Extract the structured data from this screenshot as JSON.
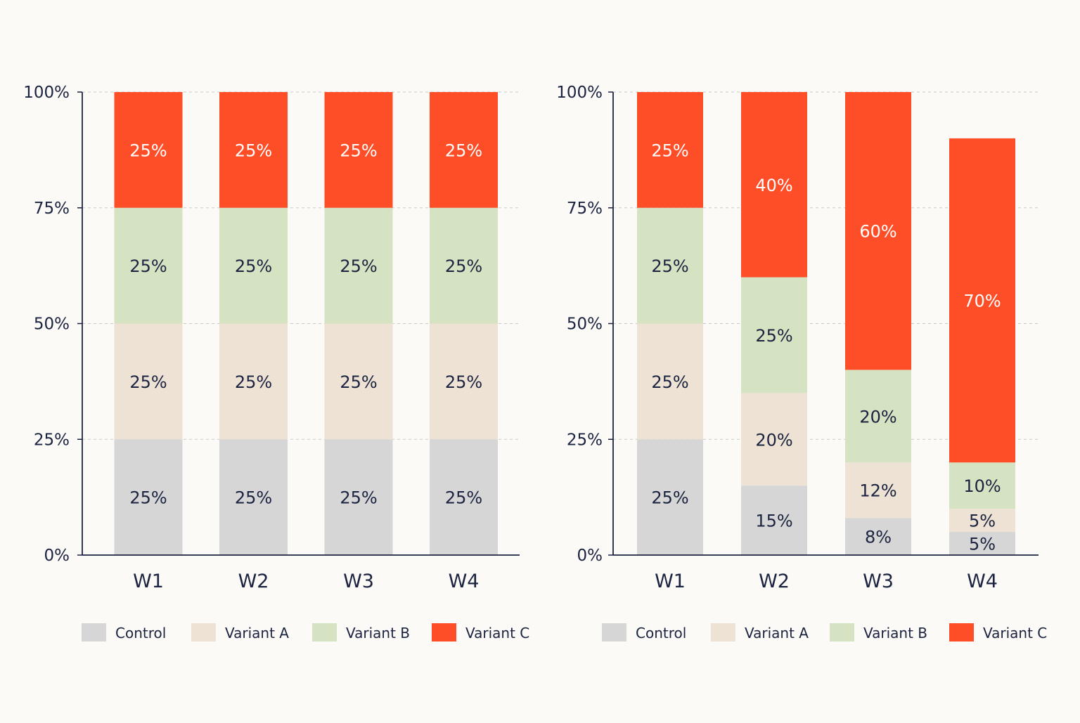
{
  "colors": {
    "Control": "#d6d6d6",
    "Variant A": "#ede2d3",
    "Variant B": "#d6e3c2",
    "Variant C": "#fd4e27",
    "axis": "#1b2340",
    "grid": "#c9c9c9",
    "label_dark": "#1b2340",
    "label_light": "#ffffff"
  },
  "chart_data": [
    {
      "type": "bar",
      "stacked": true,
      "categories": [
        "W1",
        "W2",
        "W3",
        "W4"
      ],
      "ylim": [
        0,
        100
      ],
      "yticks": [
        "0%",
        "25%",
        "50%",
        "75%",
        "100%"
      ],
      "grid": true,
      "legend_position": "bottom",
      "series": [
        {
          "name": "Control",
          "values": [
            25,
            25,
            25,
            25
          ],
          "labels": [
            "25%",
            "25%",
            "25%",
            "25%"
          ]
        },
        {
          "name": "Variant A",
          "values": [
            25,
            25,
            25,
            25
          ],
          "labels": [
            "25%",
            "25%",
            "25%",
            "25%"
          ]
        },
        {
          "name": "Variant B",
          "values": [
            25,
            25,
            25,
            25
          ],
          "labels": [
            "25%",
            "25%",
            "25%",
            "25%"
          ]
        },
        {
          "name": "Variant C",
          "values": [
            25,
            25,
            25,
            25
          ],
          "labels": [
            "25%",
            "25%",
            "25%",
            "25%"
          ]
        }
      ]
    },
    {
      "type": "bar",
      "stacked": true,
      "categories": [
        "W1",
        "W2",
        "W3",
        "W4"
      ],
      "ylim": [
        0,
        100
      ],
      "yticks": [
        "0%",
        "25%",
        "50%",
        "75%",
        "100%"
      ],
      "grid": true,
      "legend_position": "bottom",
      "series": [
        {
          "name": "Control",
          "values": [
            25,
            15,
            8,
            5
          ],
          "labels": [
            "25%",
            "15%",
            "8%",
            "5%"
          ]
        },
        {
          "name": "Variant A",
          "values": [
            25,
            20,
            12,
            5
          ],
          "labels": [
            "25%",
            "20%",
            "12%",
            "5%"
          ]
        },
        {
          "name": "Variant B",
          "values": [
            25,
            25,
            20,
            10
          ],
          "labels": [
            "25%",
            "25%",
            "20%",
            "10%"
          ]
        },
        {
          "name": "Variant C",
          "values": [
            25,
            40,
            60,
            70
          ],
          "labels": [
            "25%",
            "40%",
            "60%",
            "70%"
          ]
        }
      ]
    }
  ]
}
